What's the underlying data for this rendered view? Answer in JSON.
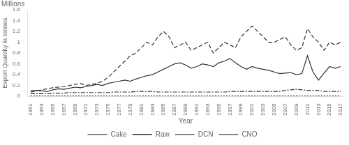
{
  "chart_data": {
    "type": "line",
    "annotations": [
      "Millions"
    ],
    "x_label": "Year",
    "y_label": "Export Quantity in tonnes",
    "x": [
      1961,
      1962,
      1963,
      1964,
      1965,
      1966,
      1967,
      1968,
      1969,
      1970,
      1971,
      1972,
      1973,
      1974,
      1975,
      1976,
      1977,
      1978,
      1979,
      1980,
      1981,
      1982,
      1983,
      1984,
      1985,
      1986,
      1987,
      1988,
      1989,
      1990,
      1991,
      1992,
      1993,
      1994,
      1995,
      1996,
      1997,
      1998,
      1999,
      2000,
      2001,
      2002,
      2003,
      2004,
      2005,
      2006,
      2007,
      2008,
      2009,
      2010,
      2011,
      2012,
      2013,
      2014,
      2015,
      2016,
      2017
    ],
    "series": [
      {
        "name": "Cake",
        "color": "#333333",
        "line_style": "solid",
        "values": [
          0.1,
          0.11,
          0.1,
          0.09,
          0.12,
          0.14,
          0.13,
          0.15,
          0.17,
          0.16,
          0.18,
          0.2,
          0.22,
          0.2,
          0.24,
          0.26,
          0.28,
          0.3,
          0.28,
          0.32,
          0.35,
          0.38,
          0.4,
          0.45,
          0.5,
          0.55,
          0.6,
          0.62,
          0.58,
          0.52,
          0.55,
          0.6,
          0.58,
          0.55,
          0.62,
          0.65,
          0.7,
          0.62,
          0.55,
          0.5,
          0.55,
          0.52,
          0.5,
          0.48,
          0.45,
          0.42,
          0.43,
          0.44,
          0.4,
          0.42,
          0.75,
          0.45,
          0.3,
          0.43,
          0.55,
          0.52,
          0.55
        ]
      },
      {
        "name": "Raw",
        "color": "#333333",
        "line_style": "dotted",
        "values": [
          0.005,
          0.005,
          0.005,
          0.005,
          0.005,
          0.005,
          0.005,
          0.005,
          0.005,
          0.005,
          0.005,
          0.005,
          0.005,
          0.005,
          0.005,
          0.005,
          0.005,
          0.005,
          0.005,
          0.005,
          0.005,
          0.005,
          0.005,
          0.005,
          0.005,
          0.005,
          0.005,
          0.005,
          0.005,
          0.005,
          0.005,
          0.005,
          0.005,
          0.005,
          0.005,
          0.005,
          0.005,
          0.005,
          0.005,
          0.005,
          0.005,
          0.005,
          0.005,
          0.005,
          0.005,
          0.005,
          0.005,
          0.005,
          0.005,
          0.005,
          0.005,
          0.005,
          0.005,
          0.005,
          0.005,
          0.005,
          0.005
        ]
      },
      {
        "name": "DCN",
        "color": "#333333",
        "line_style": "dashdot",
        "values": [
          0.05,
          0.05,
          0.05,
          0.05,
          0.06,
          0.06,
          0.06,
          0.07,
          0.07,
          0.07,
          0.07,
          0.07,
          0.07,
          0.07,
          0.07,
          0.08,
          0.08,
          0.08,
          0.08,
          0.09,
          0.09,
          0.09,
          0.09,
          0.08,
          0.08,
          0.08,
          0.08,
          0.08,
          0.08,
          0.08,
          0.08,
          0.08,
          0.08,
          0.08,
          0.08,
          0.08,
          0.09,
          0.09,
          0.09,
          0.09,
          0.09,
          0.09,
          0.09,
          0.09,
          0.09,
          0.09,
          0.11,
          0.12,
          0.13,
          0.12,
          0.11,
          0.11,
          0.11,
          0.09,
          0.09,
          0.09,
          0.09
        ]
      },
      {
        "name": "CNO",
        "color": "#333333",
        "line_style": "dashed",
        "values": [
          0.08,
          0.1,
          0.12,
          0.14,
          0.16,
          0.17,
          0.18,
          0.2,
          0.22,
          0.24,
          0.2,
          0.22,
          0.24,
          0.28,
          0.35,
          0.45,
          0.55,
          0.65,
          0.75,
          0.8,
          0.9,
          1.0,
          0.95,
          1.1,
          1.2,
          1.1,
          0.9,
          0.95,
          1.0,
          0.85,
          0.9,
          0.95,
          1.0,
          0.8,
          0.9,
          1.0,
          0.95,
          0.9,
          1.1,
          1.2,
          1.3,
          1.2,
          1.1,
          1.0,
          1.0,
          1.05,
          1.1,
          0.95,
          0.85,
          0.9,
          1.25,
          1.1,
          1.0,
          0.85,
          1.0,
          0.95,
          1.0
        ]
      }
    ],
    "xlim": [
      1960.5,
      2017.5
    ],
    "xticks": [
      1961,
      1963,
      1965,
      1967,
      1969,
      1971,
      1973,
      1975,
      1977,
      1979,
      1981,
      1983,
      1985,
      1987,
      1989,
      1991,
      1993,
      1995,
      1997,
      1999,
      2001,
      2003,
      2005,
      2007,
      2009,
      2011,
      2013,
      2015,
      2017
    ],
    "ylim": [
      0,
      1.6
    ],
    "yticks": [
      0,
      0.2,
      0.4,
      0.6,
      0.8,
      1,
      1.2,
      1.4,
      1.6
    ],
    "grid": false,
    "legend": "bottom"
  }
}
